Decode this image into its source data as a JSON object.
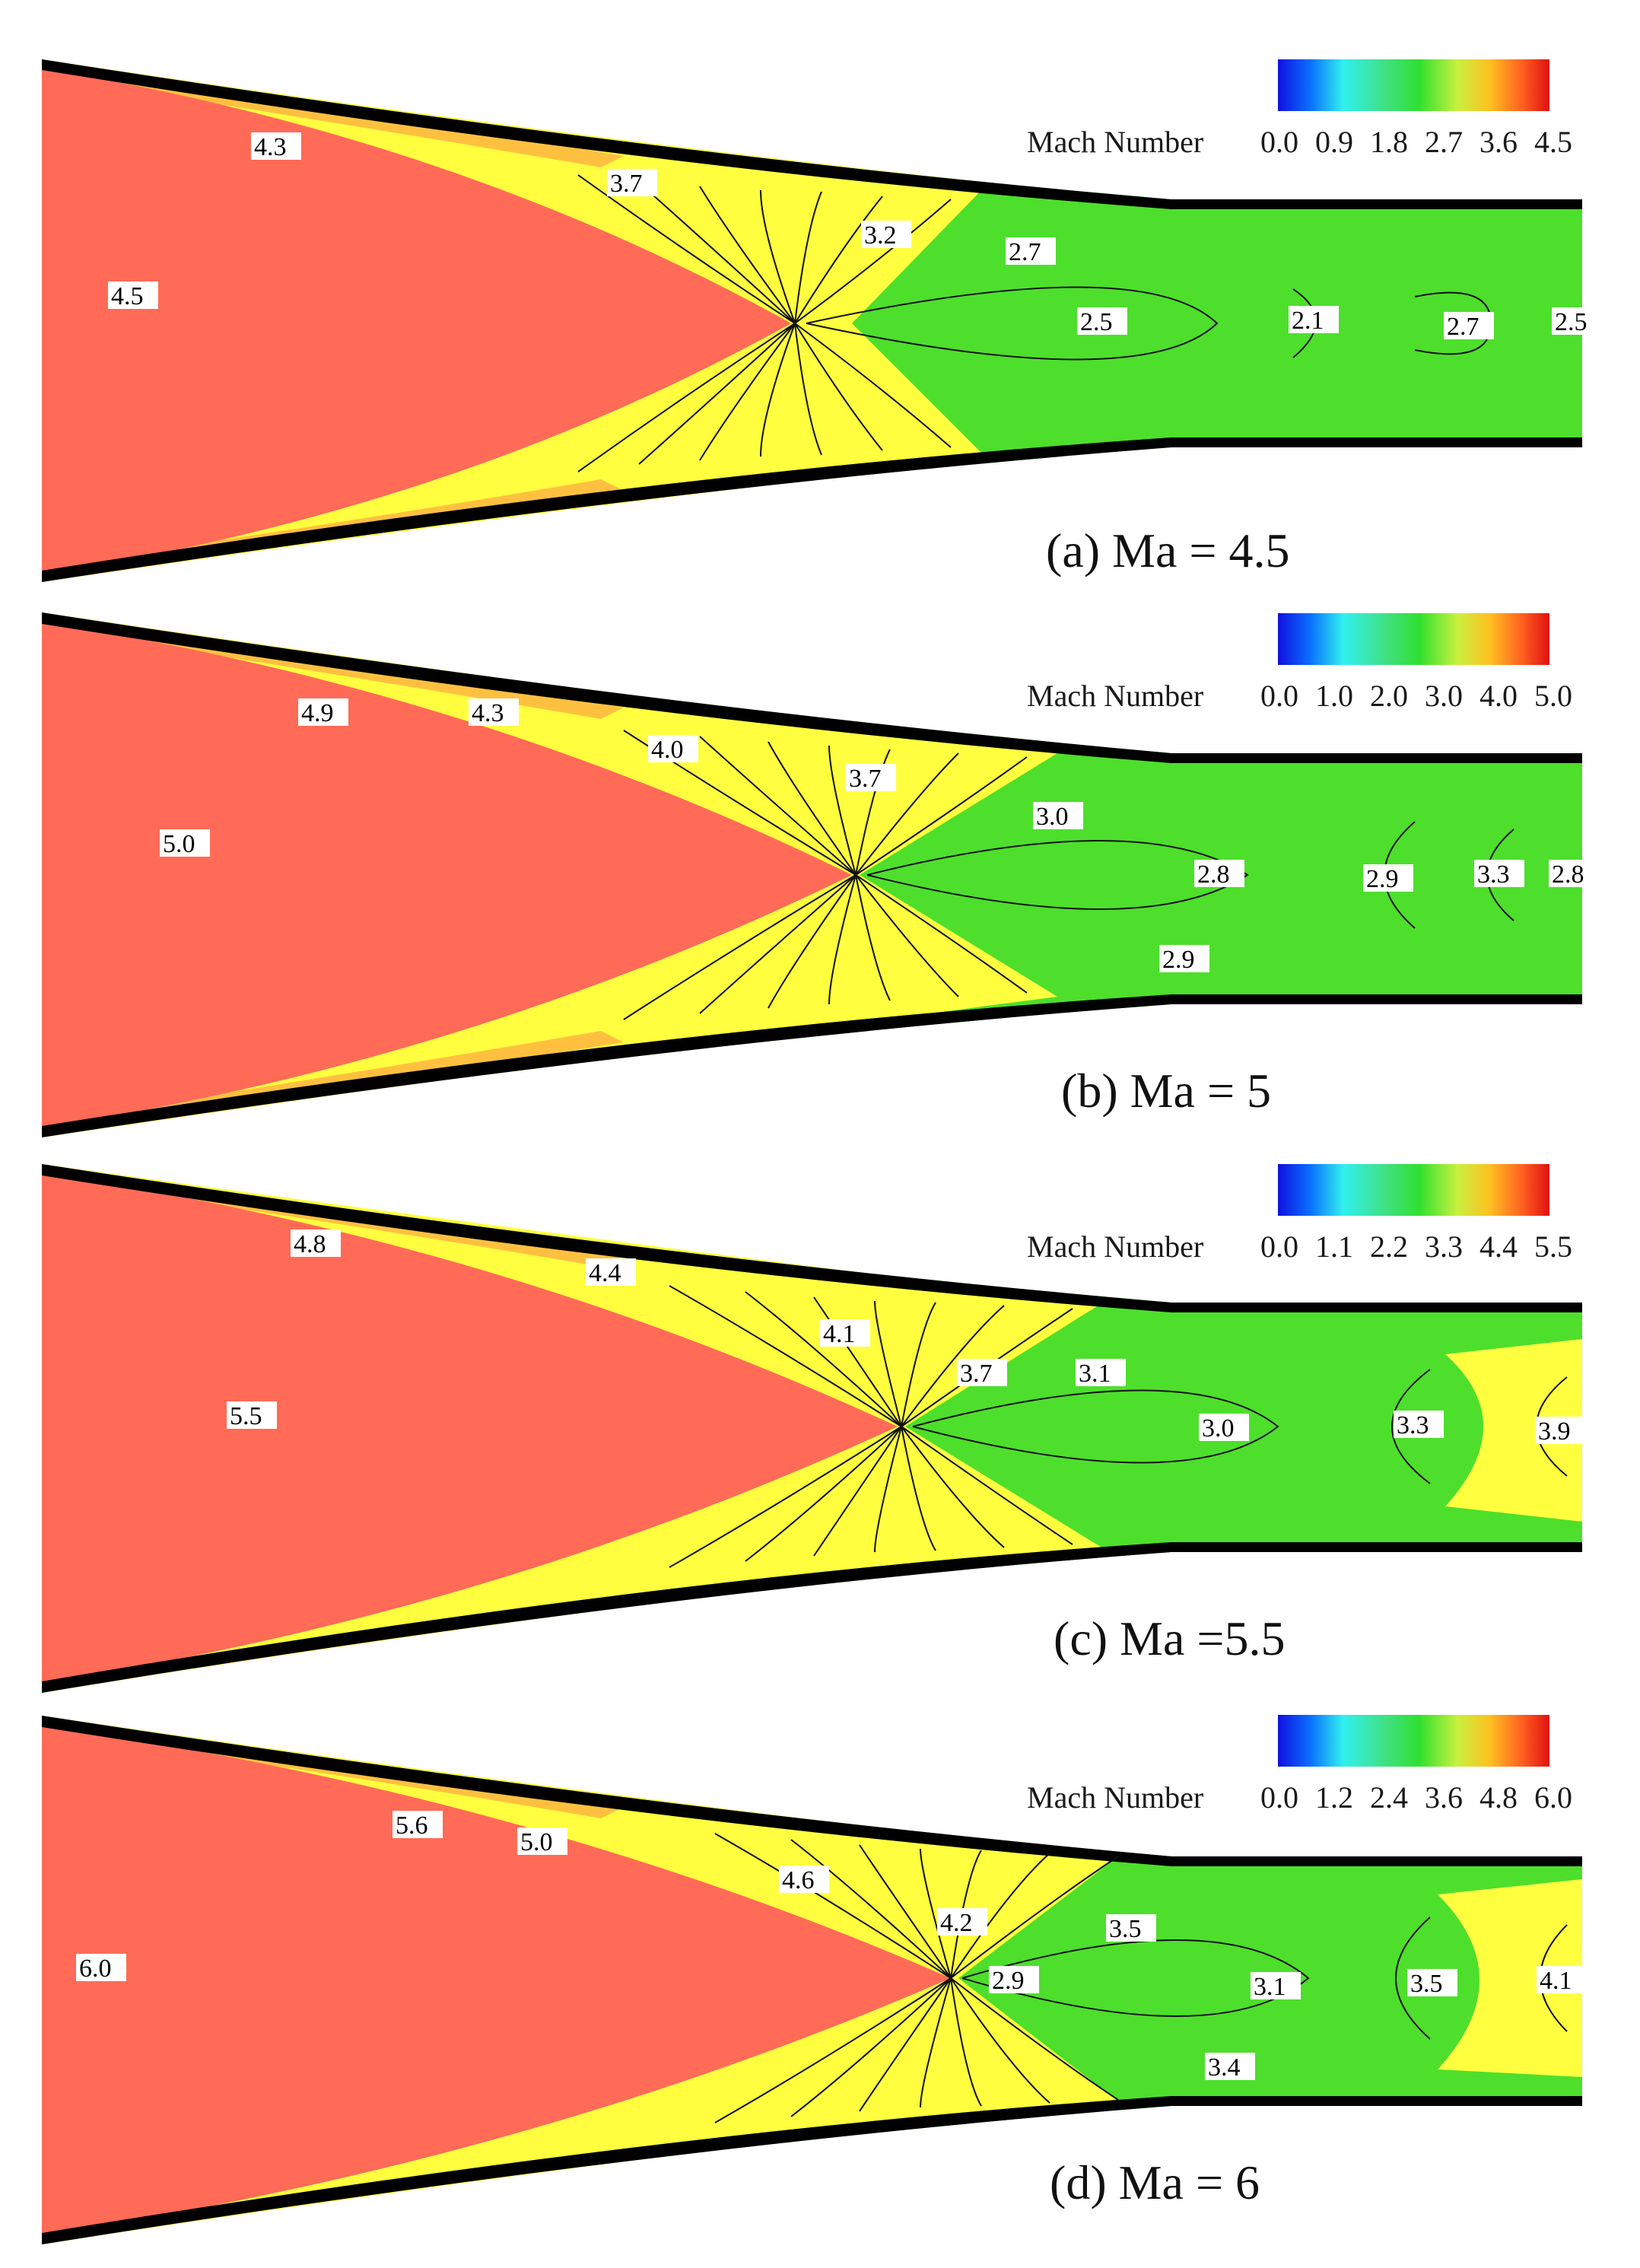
{
  "chart_data": [
    {
      "type": "contour",
      "caption": "(a) Ma = 4.5",
      "colorbar": {
        "title": "Mach Number",
        "ticks": [
          "0.0",
          "0.9",
          "1.8",
          "2.7",
          "3.6",
          "4.5"
        ],
        "range": [
          0.0,
          4.5
        ]
      },
      "contour_labels": [
        "4.3",
        "3.7",
        "3.2",
        "2.7",
        "4.5",
        "2.5",
        "2.1",
        "2.7",
        "2.5"
      ]
    },
    {
      "type": "contour",
      "caption": "(b) Ma = 5",
      "colorbar": {
        "title": "Mach Number",
        "ticks": [
          "0.0",
          "1.0",
          "2.0",
          "3.0",
          "4.0",
          "5.0"
        ],
        "range": [
          0.0,
          5.0
        ]
      },
      "contour_labels": [
        "4.9",
        "4.3",
        "4.0",
        "3.7",
        "3.0",
        "5.0",
        "2.8",
        "2.9",
        "3.3",
        "2.8",
        "2.9"
      ]
    },
    {
      "type": "contour",
      "caption": "(c) Ma =5.5",
      "colorbar": {
        "title": "Mach Number",
        "ticks": [
          "0.0",
          "1.1",
          "2.2",
          "3.3",
          "4.4",
          "5.5"
        ],
        "range": [
          0.0,
          5.5
        ]
      },
      "contour_labels": [
        "4.8",
        "4.4",
        "4.1",
        "3.7",
        "3.1",
        "5.5",
        "3.0",
        "3.3",
        "3.9"
      ]
    },
    {
      "type": "contour",
      "caption": "(d) Ma = 6",
      "colorbar": {
        "title": "Mach Number",
        "ticks": [
          "0.0",
          "1.2",
          "2.4",
          "3.6",
          "4.8",
          "6.0"
        ],
        "range": [
          0.0,
          6.0
        ]
      },
      "contour_labels": [
        "5.6",
        "5.0",
        "4.6",
        "4.2",
        "3.5",
        "6.0",
        "2.9",
        "3.1",
        "3.5",
        "4.1",
        "3.4"
      ]
    }
  ],
  "colors": {
    "freestream": "#ff6b57",
    "compression": "#ffff40",
    "throat": "#4ddf2c",
    "wall": "#000000",
    "colorbar_stops": [
      "#1010e0",
      "#00a0ff",
      "#30f0f0",
      "#40e040",
      "#30e030",
      "#c8f040",
      "#ffc020",
      "#ff6020",
      "#e01010"
    ]
  }
}
